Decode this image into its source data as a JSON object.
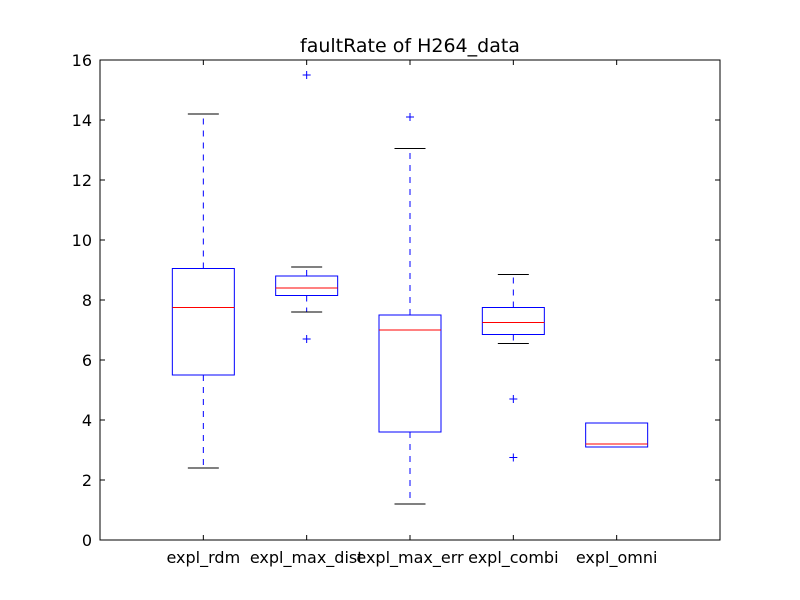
{
  "chart_data": {
    "type": "box",
    "title": "faultRate of H264_data",
    "xlabel": "",
    "ylabel": "",
    "ylim": [
      0,
      16
    ],
    "yticks": [
      0,
      2,
      4,
      6,
      8,
      10,
      12,
      14,
      16
    ],
    "grid": false,
    "colors": {
      "box": "#0000ff",
      "median": "#ff0000",
      "whisker": "#0000ff",
      "cap": "#000000",
      "flier": "#0000ff",
      "axes": "#000000"
    },
    "categories": [
      "expl_rdm",
      "expl_max_dist",
      "expl_max_err",
      "expl_combi",
      "expl_omni"
    ],
    "boxes": [
      {
        "category": "expl_rdm",
        "whisker_low": 2.4,
        "q1": 5.5,
        "median": 7.75,
        "q3": 9.05,
        "whisker_high": 14.2,
        "fliers": []
      },
      {
        "category": "expl_max_dist",
        "whisker_low": 7.6,
        "q1": 8.15,
        "median": 8.4,
        "q3": 8.8,
        "whisker_high": 9.1,
        "fliers": [
          6.7,
          15.5
        ]
      },
      {
        "category": "expl_max_err",
        "whisker_low": 1.2,
        "q1": 3.6,
        "median": 7.0,
        "q3": 7.5,
        "whisker_high": 13.05,
        "fliers": [
          14.1
        ]
      },
      {
        "category": "expl_combi",
        "whisker_low": 6.55,
        "q1": 6.85,
        "median": 7.25,
        "q3": 7.75,
        "whisker_high": 8.85,
        "fliers": [
          4.7,
          2.75
        ]
      },
      {
        "category": "expl_omni",
        "whisker_low": 3.1,
        "q1": 3.1,
        "median": 3.2,
        "q3": 3.9,
        "whisker_high": 3.9,
        "fliers": []
      }
    ]
  }
}
